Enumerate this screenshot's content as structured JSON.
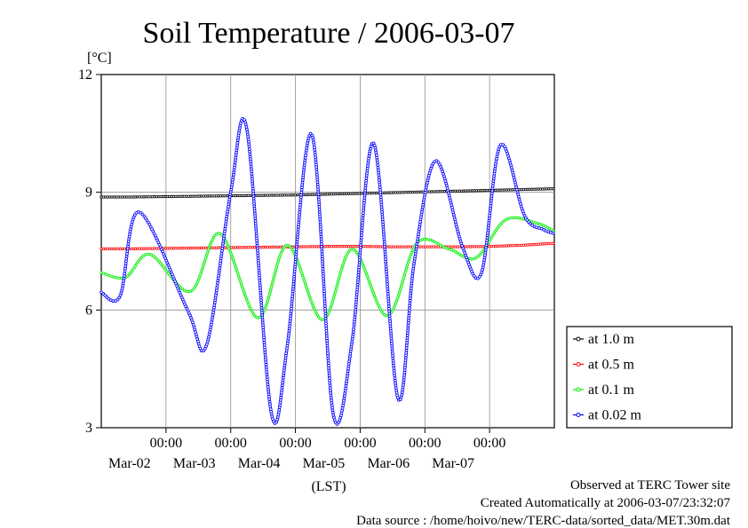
{
  "chart_data": {
    "type": "line",
    "title": "Soil Temperature / 2006-03-07",
    "ylabel": "[°C]",
    "xlabel": "(LST)",
    "ylim": [
      3,
      12
    ],
    "yticks": [
      3,
      6,
      9,
      12
    ],
    "x_tick_labels": [
      {
        "time": "00:00",
        "date": "Mar-02"
      },
      {
        "time": "00:00",
        "date": "Mar-03"
      },
      {
        "time": "00:00",
        "date": "Mar-04"
      },
      {
        "time": "00:00",
        "date": "Mar-05"
      },
      {
        "time": "00:00",
        "date": "Mar-06"
      },
      {
        "time": "00:00",
        "date": "Mar-07"
      }
    ],
    "grid": true,
    "legend_placement": "right",
    "series": [
      {
        "name": "at 1.0 m",
        "color": "#000000",
        "x": [
          "2006-03-01 00:00",
          "2006-03-01 12:00",
          "2006-03-02 00:00",
          "2006-03-02 12:00",
          "2006-03-03 00:00",
          "2006-03-03 12:00",
          "2006-03-04 00:00",
          "2006-03-04 12:00",
          "2006-03-05 00:00",
          "2006-03-05 12:00",
          "2006-03-06 00:00",
          "2006-03-06 12:00",
          "2006-03-07 00:00",
          "2006-03-07 12:00",
          "2006-03-08 00:00"
        ],
        "values": [
          8.88,
          8.88,
          8.89,
          8.9,
          8.91,
          8.92,
          8.93,
          8.95,
          8.97,
          8.99,
          9.01,
          9.03,
          9.05,
          9.07,
          9.09
        ]
      },
      {
        "name": "at 0.5 m",
        "color": "#ff0000",
        "x": [
          "2006-03-01 00:00",
          "2006-03-01 12:00",
          "2006-03-02 00:00",
          "2006-03-02 12:00",
          "2006-03-03 00:00",
          "2006-03-03 12:00",
          "2006-03-04 00:00",
          "2006-03-04 12:00",
          "2006-03-05 00:00",
          "2006-03-05 12:00",
          "2006-03-06 00:00",
          "2006-03-06 12:00",
          "2006-03-07 00:00",
          "2006-03-07 12:00",
          "2006-03-08 00:00"
        ],
        "values": [
          7.56,
          7.56,
          7.57,
          7.58,
          7.59,
          7.6,
          7.61,
          7.62,
          7.62,
          7.61,
          7.61,
          7.61,
          7.62,
          7.65,
          7.7
        ]
      },
      {
        "name": "at 0.1 m",
        "color": "#00ee00",
        "x": [
          "2006-03-01 00:00",
          "2006-03-01 09:00",
          "2006-03-01 18:00",
          "2006-03-02 09:00",
          "2006-03-02 20:00",
          "2006-03-03 10:00",
          "2006-03-03 21:00",
          "2006-03-04 10:00",
          "2006-03-04 21:00",
          "2006-03-05 10:00",
          "2006-03-05 21:00",
          "2006-03-06 09:00",
          "2006-03-06 19:00",
          "2006-03-07 06:00",
          "2006-03-07 18:00",
          "2006-03-08 00:00"
        ],
        "values": [
          6.95,
          6.83,
          7.42,
          6.47,
          7.95,
          5.8,
          7.65,
          5.75,
          7.55,
          5.85,
          7.7,
          7.55,
          7.33,
          8.3,
          8.2,
          8.0
        ]
      },
      {
        "name": "at 0.02 m",
        "color": "#0000ff",
        "x": [
          "2006-03-01 00:00",
          "2006-03-01 07:00",
          "2006-03-01 14:00",
          "2006-03-02 08:00",
          "2006-03-02 15:00",
          "2006-03-03 00:00",
          "2006-03-03 06:00",
          "2006-03-03 15:00",
          "2006-03-03 21:00",
          "2006-03-04 06:00",
          "2006-03-04 14:00",
          "2006-03-04 21:00",
          "2006-03-05 05:00",
          "2006-03-05 14:00",
          "2006-03-05 20:00",
          "2006-03-06 04:00",
          "2006-03-06 14:00",
          "2006-03-06 21:00",
          "2006-03-07 04:00",
          "2006-03-07 13:00",
          "2006-03-07 20:00",
          "2006-03-08 00:00"
        ],
        "values": [
          6.45,
          6.36,
          8.5,
          6.0,
          5.1,
          9.0,
          10.6,
          3.4,
          5.1,
          10.48,
          3.35,
          5.2,
          10.25,
          3.75,
          7.2,
          9.8,
          7.6,
          6.95,
          10.2,
          8.4,
          8.05,
          7.95
        ]
      }
    ],
    "annotations": [
      "Observed at TERC Tower site",
      "Created Automatically at 2006-03-07/23:32:07",
      "Data source : /home/hoivo/new/TERC-data/sorted_data/MET.30m.dat"
    ]
  }
}
